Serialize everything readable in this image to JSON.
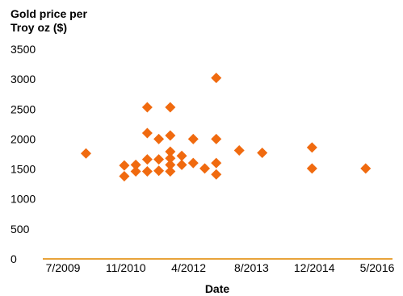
{
  "chart_data": {
    "type": "scatter",
    "title": "",
    "ylabel": "Gold price per\nTroy oz ($)",
    "xlabel": "Date",
    "ylim": [
      0,
      3500
    ],
    "yticks": [
      "0",
      "500",
      "1000",
      "1500",
      "2000",
      "2500",
      "3000",
      "3500"
    ],
    "xlim": [
      "2009-07",
      "2016-05"
    ],
    "xticks": [
      "7/2009",
      "11/2010",
      "4/2012",
      "8/2013",
      "12/2014",
      "5/2016"
    ],
    "grid": false,
    "marker_color": "#F06A0F",
    "axis_color": "#E8A33A",
    "series": [
      {
        "points": [
          {
            "x": "2010-01",
            "y": 1760
          },
          {
            "x": "2010-11",
            "y": 1380
          },
          {
            "x": "2010-11",
            "y": 1560
          },
          {
            "x": "2011-02",
            "y": 1460
          },
          {
            "x": "2011-02",
            "y": 1570
          },
          {
            "x": "2011-05",
            "y": 1460
          },
          {
            "x": "2011-05",
            "y": 1660
          },
          {
            "x": "2011-05",
            "y": 2100
          },
          {
            "x": "2011-05",
            "y": 2530
          },
          {
            "x": "2011-08",
            "y": 1470
          },
          {
            "x": "2011-08",
            "y": 1660
          },
          {
            "x": "2011-08",
            "y": 2000
          },
          {
            "x": "2011-11",
            "y": 1460
          },
          {
            "x": "2011-11",
            "y": 1570
          },
          {
            "x": "2011-11",
            "y": 1680
          },
          {
            "x": "2011-11",
            "y": 1790
          },
          {
            "x": "2011-11",
            "y": 2060
          },
          {
            "x": "2011-11",
            "y": 2530
          },
          {
            "x": "2012-02",
            "y": 1570
          },
          {
            "x": "2012-02",
            "y": 1720
          },
          {
            "x": "2012-05",
            "y": 1600
          },
          {
            "x": "2012-05",
            "y": 2000
          },
          {
            "x": "2012-08",
            "y": 1510
          },
          {
            "x": "2012-11",
            "y": 1410
          },
          {
            "x": "2012-11",
            "y": 1600
          },
          {
            "x": "2012-11",
            "y": 2000
          },
          {
            "x": "2012-11",
            "y": 3020
          },
          {
            "x": "2013-05",
            "y": 1810
          },
          {
            "x": "2013-11",
            "y": 1770
          },
          {
            "x": "2014-12",
            "y": 1510
          },
          {
            "x": "2014-12",
            "y": 1860
          },
          {
            "x": "2016-02",
            "y": 1510
          }
        ]
      }
    ]
  }
}
